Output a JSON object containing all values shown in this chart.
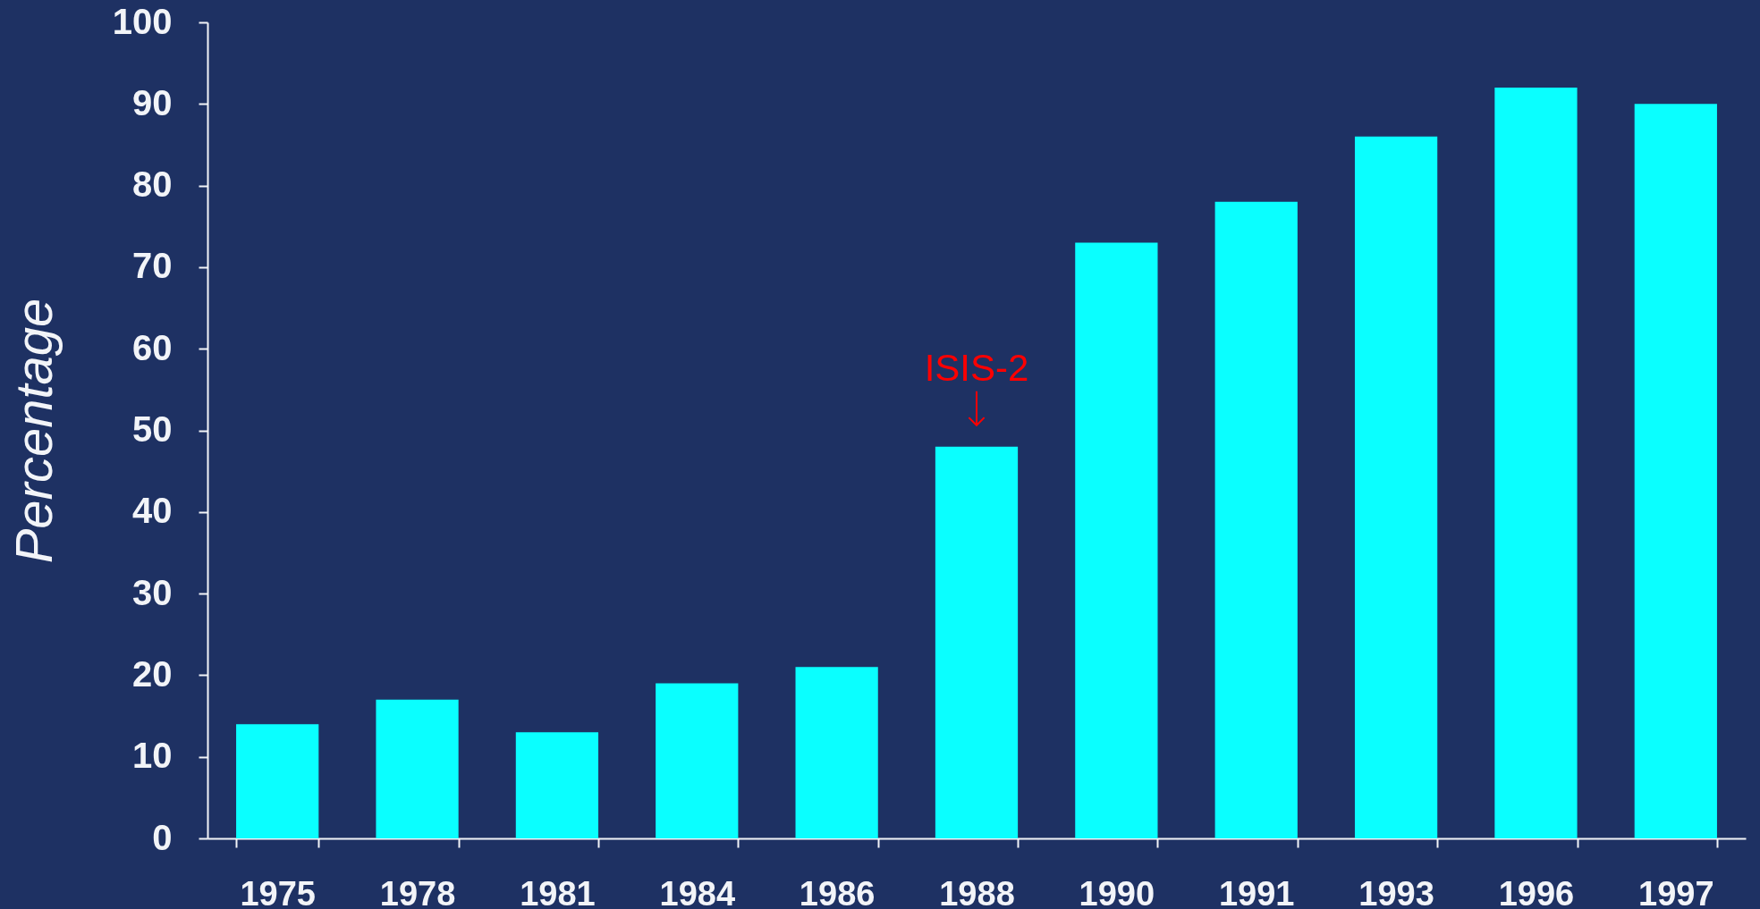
{
  "chart_data": {
    "type": "bar",
    "ylabel": "Percentage",
    "categories": [
      "1975",
      "1978",
      "1981",
      "1984",
      "1986",
      "1988",
      "1990",
      "1991",
      "1993",
      "1996",
      "1997"
    ],
    "values": [
      14,
      17,
      13,
      19,
      21,
      48,
      73,
      78,
      86,
      92,
      90
    ],
    "color": "#0affff",
    "ylim": [
      0,
      100
    ],
    "yticks": [
      0,
      10,
      20,
      30,
      40,
      50,
      60,
      70,
      80,
      90,
      100
    ],
    "annotations": [
      {
        "text": "ISIS-2",
        "x": "1988",
        "y": 48
      }
    ]
  }
}
